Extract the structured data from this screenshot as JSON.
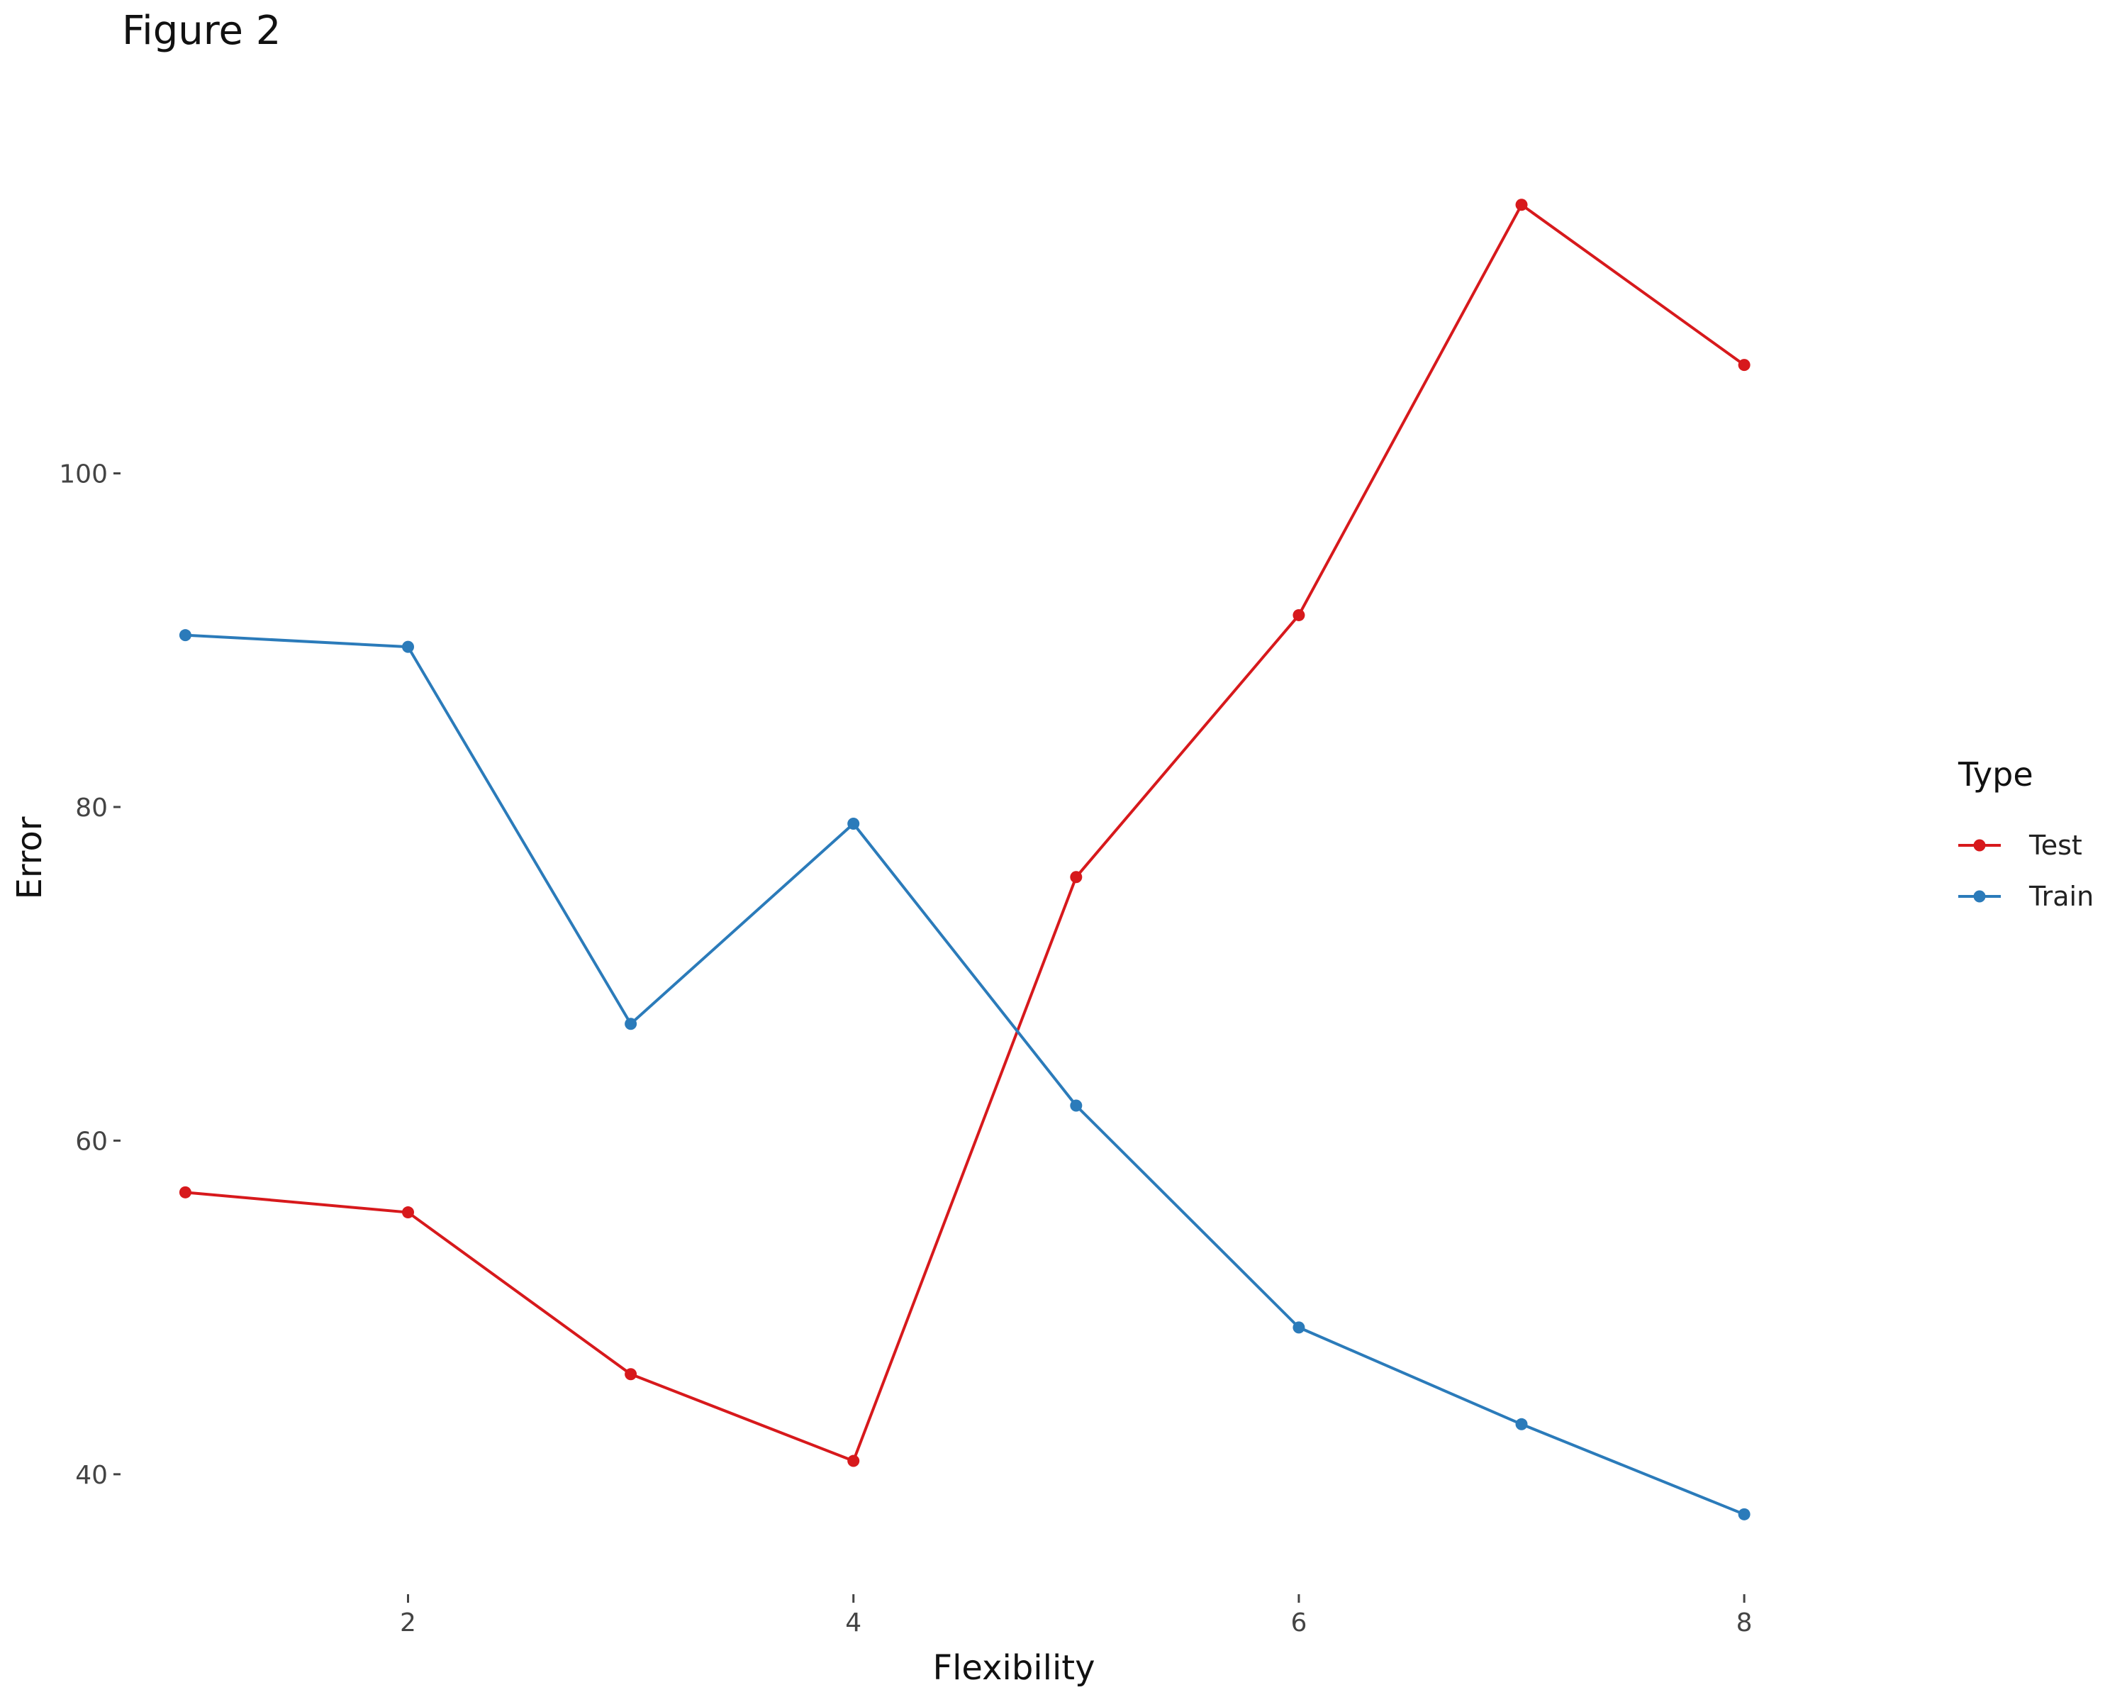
{
  "chart_data": {
    "type": "line",
    "title": "Figure 2",
    "xlabel": "Flexibility",
    "ylabel": "Error",
    "x": [
      1,
      2,
      3,
      4,
      5,
      6,
      7,
      8
    ],
    "x_ticks": [
      2,
      4,
      6,
      8
    ],
    "y_ticks": [
      40,
      60,
      80,
      100
    ],
    "xlim": [
      0.9,
      8.7
    ],
    "ylim": [
      34,
      122
    ],
    "grid": false,
    "legend": {
      "title": "Type",
      "placement": "right"
    },
    "series": [
      {
        "name": "Test",
        "color": "#d7191c",
        "values": [
          56.9,
          55.7,
          46.0,
          40.8,
          75.8,
          91.5,
          116.1,
          106.5
        ]
      },
      {
        "name": "Train",
        "color": "#2b7bba",
        "values": [
          90.3,
          89.6,
          67.0,
          79.0,
          62.1,
          48.8,
          43.0,
          37.6
        ]
      }
    ]
  }
}
